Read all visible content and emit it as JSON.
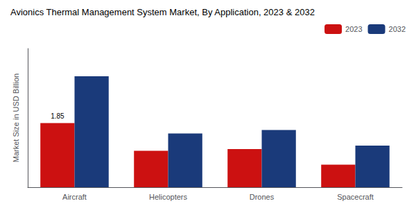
{
  "chart_data": {
    "type": "bar",
    "title": "Avionics Thermal Management System Market, By Application, 2023 & 2032",
    "ylabel": "Market Size in USD Billion",
    "categories": [
      "Aircraft",
      "Helicopters",
      "Drones",
      "Spacecraft"
    ],
    "series": [
      {
        "name": "2023",
        "color": "#cc1111",
        "values": [
          1.85,
          1.05,
          1.1,
          0.65
        ]
      },
      {
        "name": "2032",
        "color": "#1a3a7a",
        "values": [
          3.2,
          1.55,
          1.65,
          1.2
        ]
      }
    ],
    "ylim": [
      0,
      4.0
    ],
    "grid": false,
    "legend": "upper right",
    "tick_labels": "x",
    "annotations": [
      {
        "text": "1.85",
        "category": "Aircraft",
        "series": "2023"
      }
    ]
  }
}
